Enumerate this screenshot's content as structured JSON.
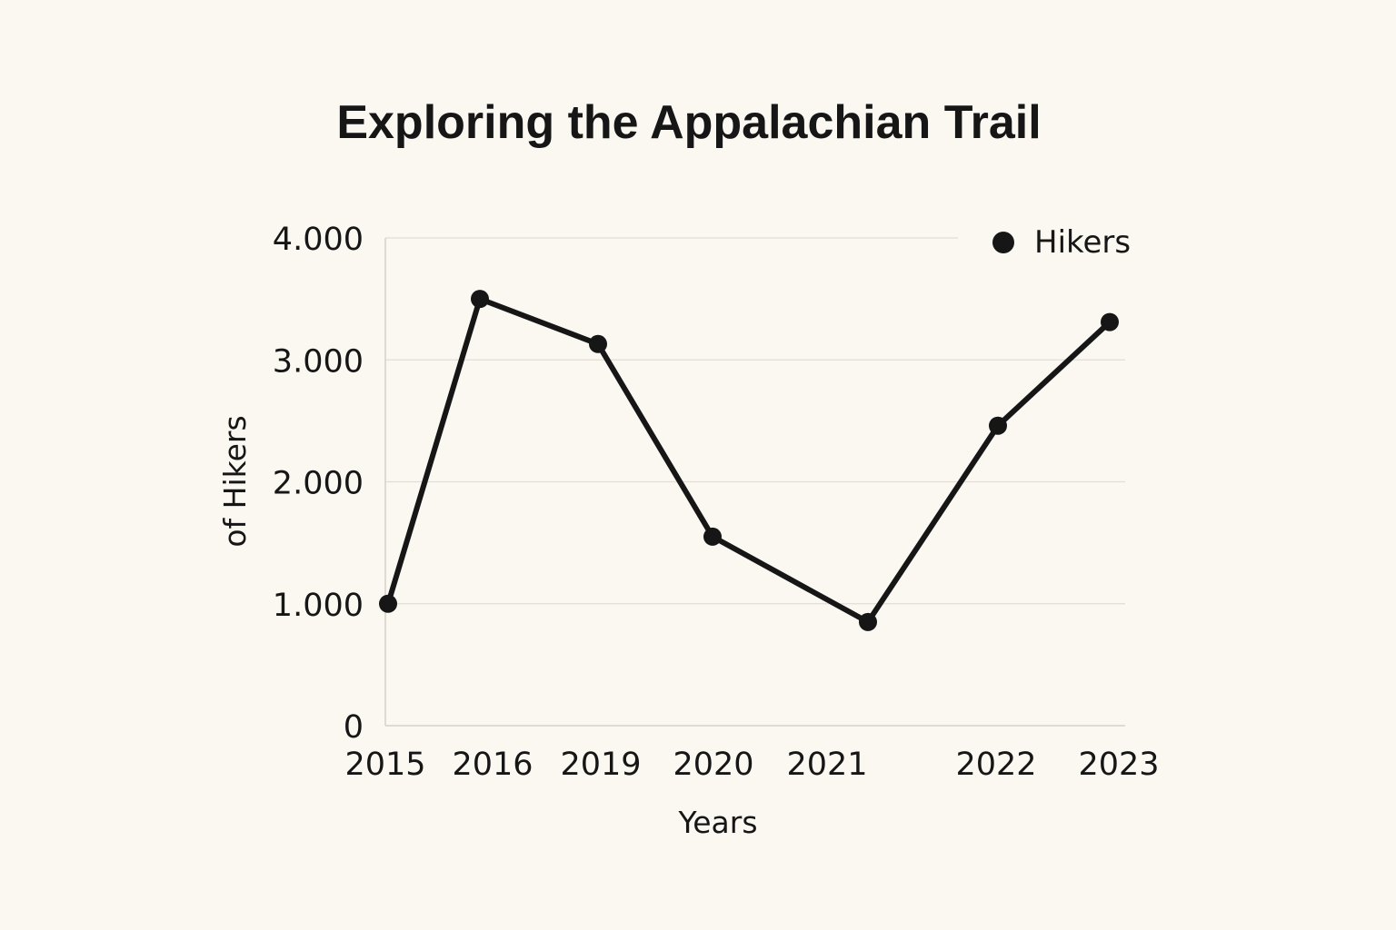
{
  "colors": {
    "background": "#FBF7F1",
    "ink": "#161616",
    "grid": "#E2DDD6",
    "axis": "#D6D1CA"
  },
  "chart_data": {
    "type": "line",
    "title": "Exploring the Appalachian Trail",
    "xlabel": "Years",
    "ylabel": "of Hikers",
    "ylim": [
      0,
      4000
    ],
    "yticks": [
      0,
      1000,
      2000,
      3000,
      4000
    ],
    "ytick_labels": [
      "0",
      "1.000",
      "2.000",
      "3.000",
      "4.000"
    ],
    "x_tick_labels": [
      "2015",
      "2016",
      "2019",
      "2020",
      "2021",
      "2022",
      "2023"
    ],
    "grid": true,
    "legend": {
      "position": "top-right",
      "entries": [
        "Hikers"
      ]
    },
    "series": [
      {
        "name": "Hikers",
        "points": [
          {
            "x": "2015",
            "y": 1000
          },
          {
            "x": "2016",
            "y": 3500
          },
          {
            "x": "2019",
            "y": 3130
          },
          {
            "x": "2020",
            "y": 1550
          },
          {
            "x": "2021",
            "y": 850
          },
          {
            "x": "2022",
            "y": 2460
          },
          {
            "x": "2023",
            "y": 3310
          }
        ]
      }
    ]
  }
}
